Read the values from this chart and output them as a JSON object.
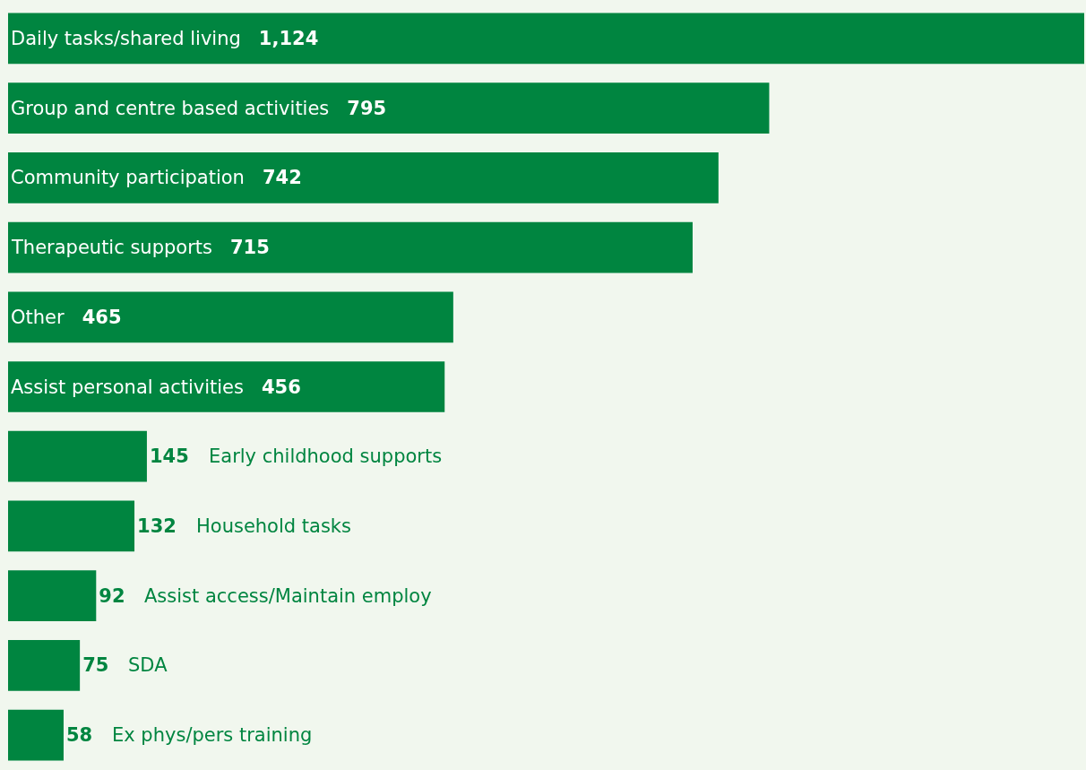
{
  "chart_data": {
    "type": "bar",
    "orientation": "horizontal",
    "categories": [
      "Daily tasks/shared living",
      "Group and centre based activities",
      "Community participation",
      "Therapeutic supports",
      "Other",
      "Assist personal activities",
      "Early childhood supports",
      "Household tasks",
      "Assist access/Maintain employ",
      "SDA",
      "Ex phys/pers training"
    ],
    "values": [
      1124,
      795,
      742,
      715,
      465,
      456,
      145,
      132,
      92,
      75,
      58
    ],
    "value_labels": [
      "1,124",
      "795",
      "742",
      "715",
      "465",
      "456",
      "145",
      "132",
      "92",
      "75",
      "58"
    ],
    "color": "#008540",
    "legend": false
  }
}
